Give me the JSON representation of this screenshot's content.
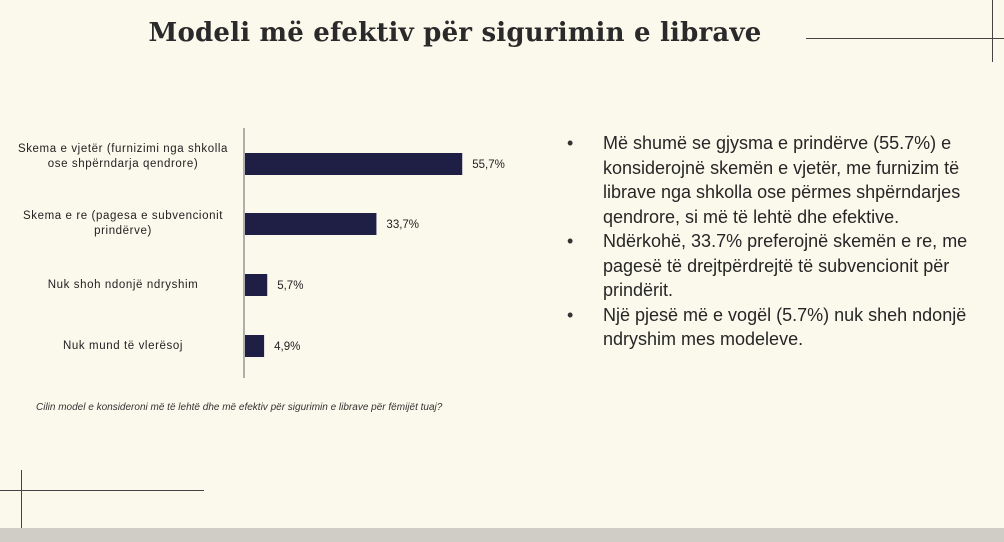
{
  "slide": {
    "title": "Modeli më efektiv për sigurimin e librave",
    "question": "Cilin model e konsideroni më të lehtë dhe më efektiv për sigurimin e librave për fëmijët tuaj?",
    "bullets": [
      "Më shumë se gjysma e prindërve (55.7%) e konsiderojnë skemën e vjetër, me furnizim të librave nga shkolla ose përmes shpërndarjes qendrore, si më të lehtë dhe efektive.",
      "Ndërkohë, 33.7% preferojnë skemën e re, me pagesë të drejtpërdrejtë të subvencionit për prindërit.",
      "Një pjesë më e vogël (5.7%) nuk sheh ndonjë ndryshim mes modeleve."
    ]
  },
  "chart_data": {
    "type": "bar",
    "orientation": "horizontal",
    "categories": [
      "Skema e vjetër (furnizimi nga shkolla ose shpërndarja qendrore)",
      "Skema e re (pagesa e subvencionit prindërve)",
      "Nuk shoh ndonjë ndryshim",
      "Nuk mund të vlerësoj"
    ],
    "values": [
      55.7,
      33.7,
      5.7,
      4.9
    ],
    "value_labels": [
      "55,7%",
      "33,7%",
      "5,7%",
      "4,9%"
    ],
    "bar_color": "#1f1f45",
    "xlim": [
      0,
      100
    ],
    "grid": false,
    "legend": "none"
  }
}
